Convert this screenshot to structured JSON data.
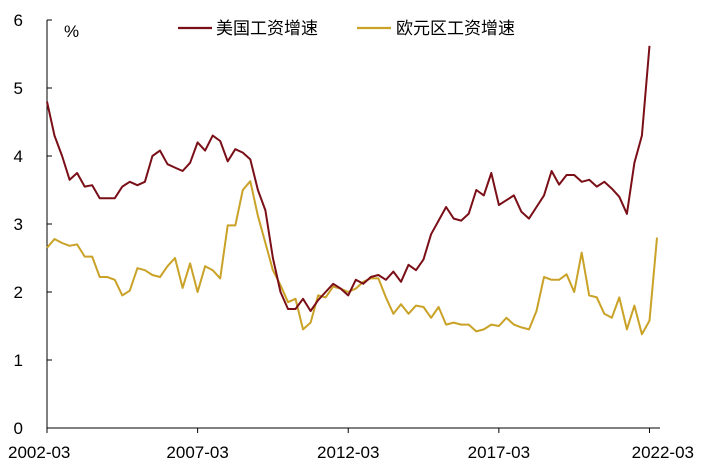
{
  "chart_data": {
    "type": "line",
    "unit": "%",
    "ylim": [
      0,
      6
    ],
    "y_ticks": [
      "0",
      "1",
      "2",
      "3",
      "4",
      "5",
      "6"
    ],
    "x_ticks": [
      "2002-03",
      "2007-03",
      "2012-03",
      "2017-03",
      "2022-03"
    ],
    "grid": false,
    "legend_position": "top",
    "x_start": "2002-03",
    "x_step": "quarter",
    "series": [
      {
        "name": "美国工资增速",
        "color": "#7a0f18",
        "values": [
          4.8,
          4.3,
          4.0,
          3.65,
          3.75,
          3.55,
          3.57,
          3.38,
          3.38,
          3.38,
          3.55,
          3.62,
          3.57,
          3.62,
          4.0,
          4.08,
          3.88,
          3.83,
          3.78,
          3.9,
          4.2,
          4.08,
          4.3,
          4.22,
          3.92,
          4.1,
          4.05,
          3.95,
          3.5,
          3.2,
          2.5,
          2.0,
          1.75,
          1.75,
          1.9,
          1.72,
          1.88,
          2.0,
          2.12,
          2.05,
          1.95,
          2.18,
          2.12,
          2.22,
          2.25,
          2.18,
          2.3,
          2.15,
          2.4,
          2.32,
          2.48,
          2.85,
          3.05,
          3.25,
          3.08,
          3.05,
          3.15,
          3.5,
          3.42,
          3.75,
          3.28,
          3.35,
          3.42,
          3.18,
          3.08,
          3.25,
          3.42,
          3.78,
          3.58,
          3.72,
          3.72,
          3.62,
          3.65,
          3.55,
          3.62,
          3.52,
          3.4,
          3.15,
          3.9,
          4.3,
          5.62
        ]
      },
      {
        "name": "欧元区工资增速",
        "color": "#c9a227",
        "values": [
          2.65,
          2.78,
          2.72,
          2.68,
          2.7,
          2.52,
          2.52,
          2.22,
          2.22,
          2.18,
          1.95,
          2.02,
          2.35,
          2.32,
          2.25,
          2.22,
          2.38,
          2.5,
          2.06,
          2.42,
          2.0,
          2.38,
          2.32,
          2.2,
          2.98,
          2.98,
          3.5,
          3.63,
          3.12,
          2.72,
          2.32,
          2.1,
          1.85,
          1.9,
          1.45,
          1.55,
          1.95,
          1.92,
          2.08,
          2.05,
          2.0,
          2.05,
          2.15,
          2.2,
          2.2,
          1.92,
          1.68,
          1.82,
          1.68,
          1.8,
          1.78,
          1.62,
          1.78,
          1.52,
          1.55,
          1.52,
          1.52,
          1.42,
          1.45,
          1.52,
          1.5,
          1.62,
          1.52,
          1.48,
          1.45,
          1.72,
          2.22,
          2.18,
          2.18,
          2.26,
          2.0,
          2.58,
          1.95,
          1.92,
          1.68,
          1.62,
          1.92,
          1.45,
          1.8,
          1.38,
          1.58,
          2.8
        ]
      }
    ]
  }
}
